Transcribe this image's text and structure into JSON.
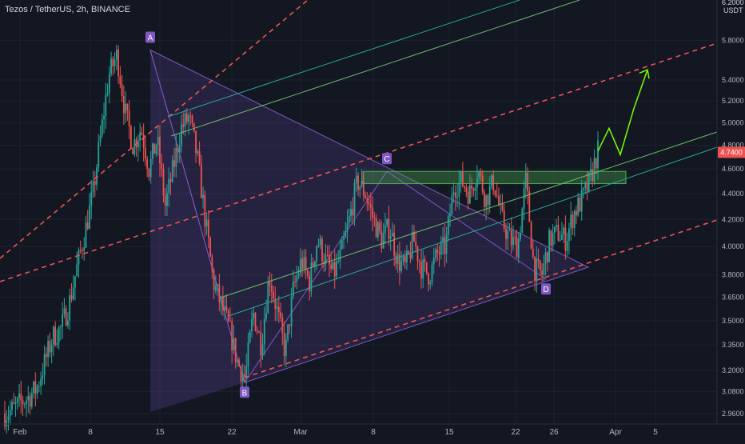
{
  "header": {
    "title": "Tezos / TetherUS, 2h, BINANCE"
  },
  "price_axis": {
    "unit": "USDT",
    "top_label": "6.2000"
  },
  "chart_data": {
    "type": "candlestick",
    "title": "Tezos / TetherUS, 2h, BINANCE",
    "y_scale": "log",
    "y_ticks": [
      2.96,
      3.08,
      3.2,
      3.35,
      3.5,
      3.65,
      3.8,
      4.0,
      4.2,
      4.4,
      4.6,
      4.8,
      5.0,
      5.2,
      5.4,
      5.8
    ],
    "y_tick_labels": [
      "2.9600",
      "3.0800",
      "3.2000",
      "3.3500",
      "3.5000",
      "3.6500",
      "3.8000",
      "4.0000",
      "4.2000",
      "4.4000",
      "4.6000",
      "4.8000",
      "5.0000",
      "5.2000",
      "5.4000",
      "5.8000"
    ],
    "x_ticks": [
      "Feb",
      "8",
      "15",
      "22",
      "Mar",
      "8",
      "15",
      "22",
      "26",
      "Apr",
      "5"
    ],
    "last_price": "4.7400",
    "colors": {
      "up": "#26a69a",
      "down": "#ef5350",
      "last_price": "#ef5350",
      "grid": "#1e222d",
      "background": "#131722"
    },
    "close_series": [
      2.96,
      2.98,
      3.02,
      3.05,
      3.1,
      3.25,
      3.4,
      3.45,
      3.6,
      3.85,
      4.1,
      4.4,
      4.9,
      5.45,
      5.65,
      5.1,
      4.8,
      4.95,
      4.6,
      4.85,
      4.3,
      4.6,
      4.95,
      5.05,
      4.7,
      4.2,
      3.75,
      3.6,
      3.45,
      3.25,
      3.15,
      3.55,
      3.35,
      3.8,
      3.55,
      3.3,
      3.7,
      3.9,
      3.75,
      4.05,
      3.9,
      3.8,
      3.95,
      4.2,
      4.5,
      4.4,
      4.2,
      4.05,
      4.15,
      3.9,
      3.85,
      4.05,
      3.85,
      3.8,
      3.95,
      4.0,
      4.45,
      4.5,
      4.4,
      4.6,
      4.35,
      4.5,
      4.2,
      4.05,
      4.0,
      4.5,
      3.85,
      3.8,
      4.05,
      4.1,
      4.05,
      4.25,
      4.35,
      4.5,
      4.75
    ],
    "annotations": {
      "points": [
        {
          "label": "A",
          "price": 5.7
        },
        {
          "label": "B",
          "price": 3.13
        },
        {
          "label": "C",
          "price": 4.58
        },
        {
          "label": "D",
          "price": 3.77
        }
      ],
      "resistance_zone": {
        "low": 4.48,
        "high": 4.58
      },
      "projection_path": [
        4.75,
        4.95,
        4.72,
        5.13,
        4.97,
        5.5
      ]
    }
  }
}
